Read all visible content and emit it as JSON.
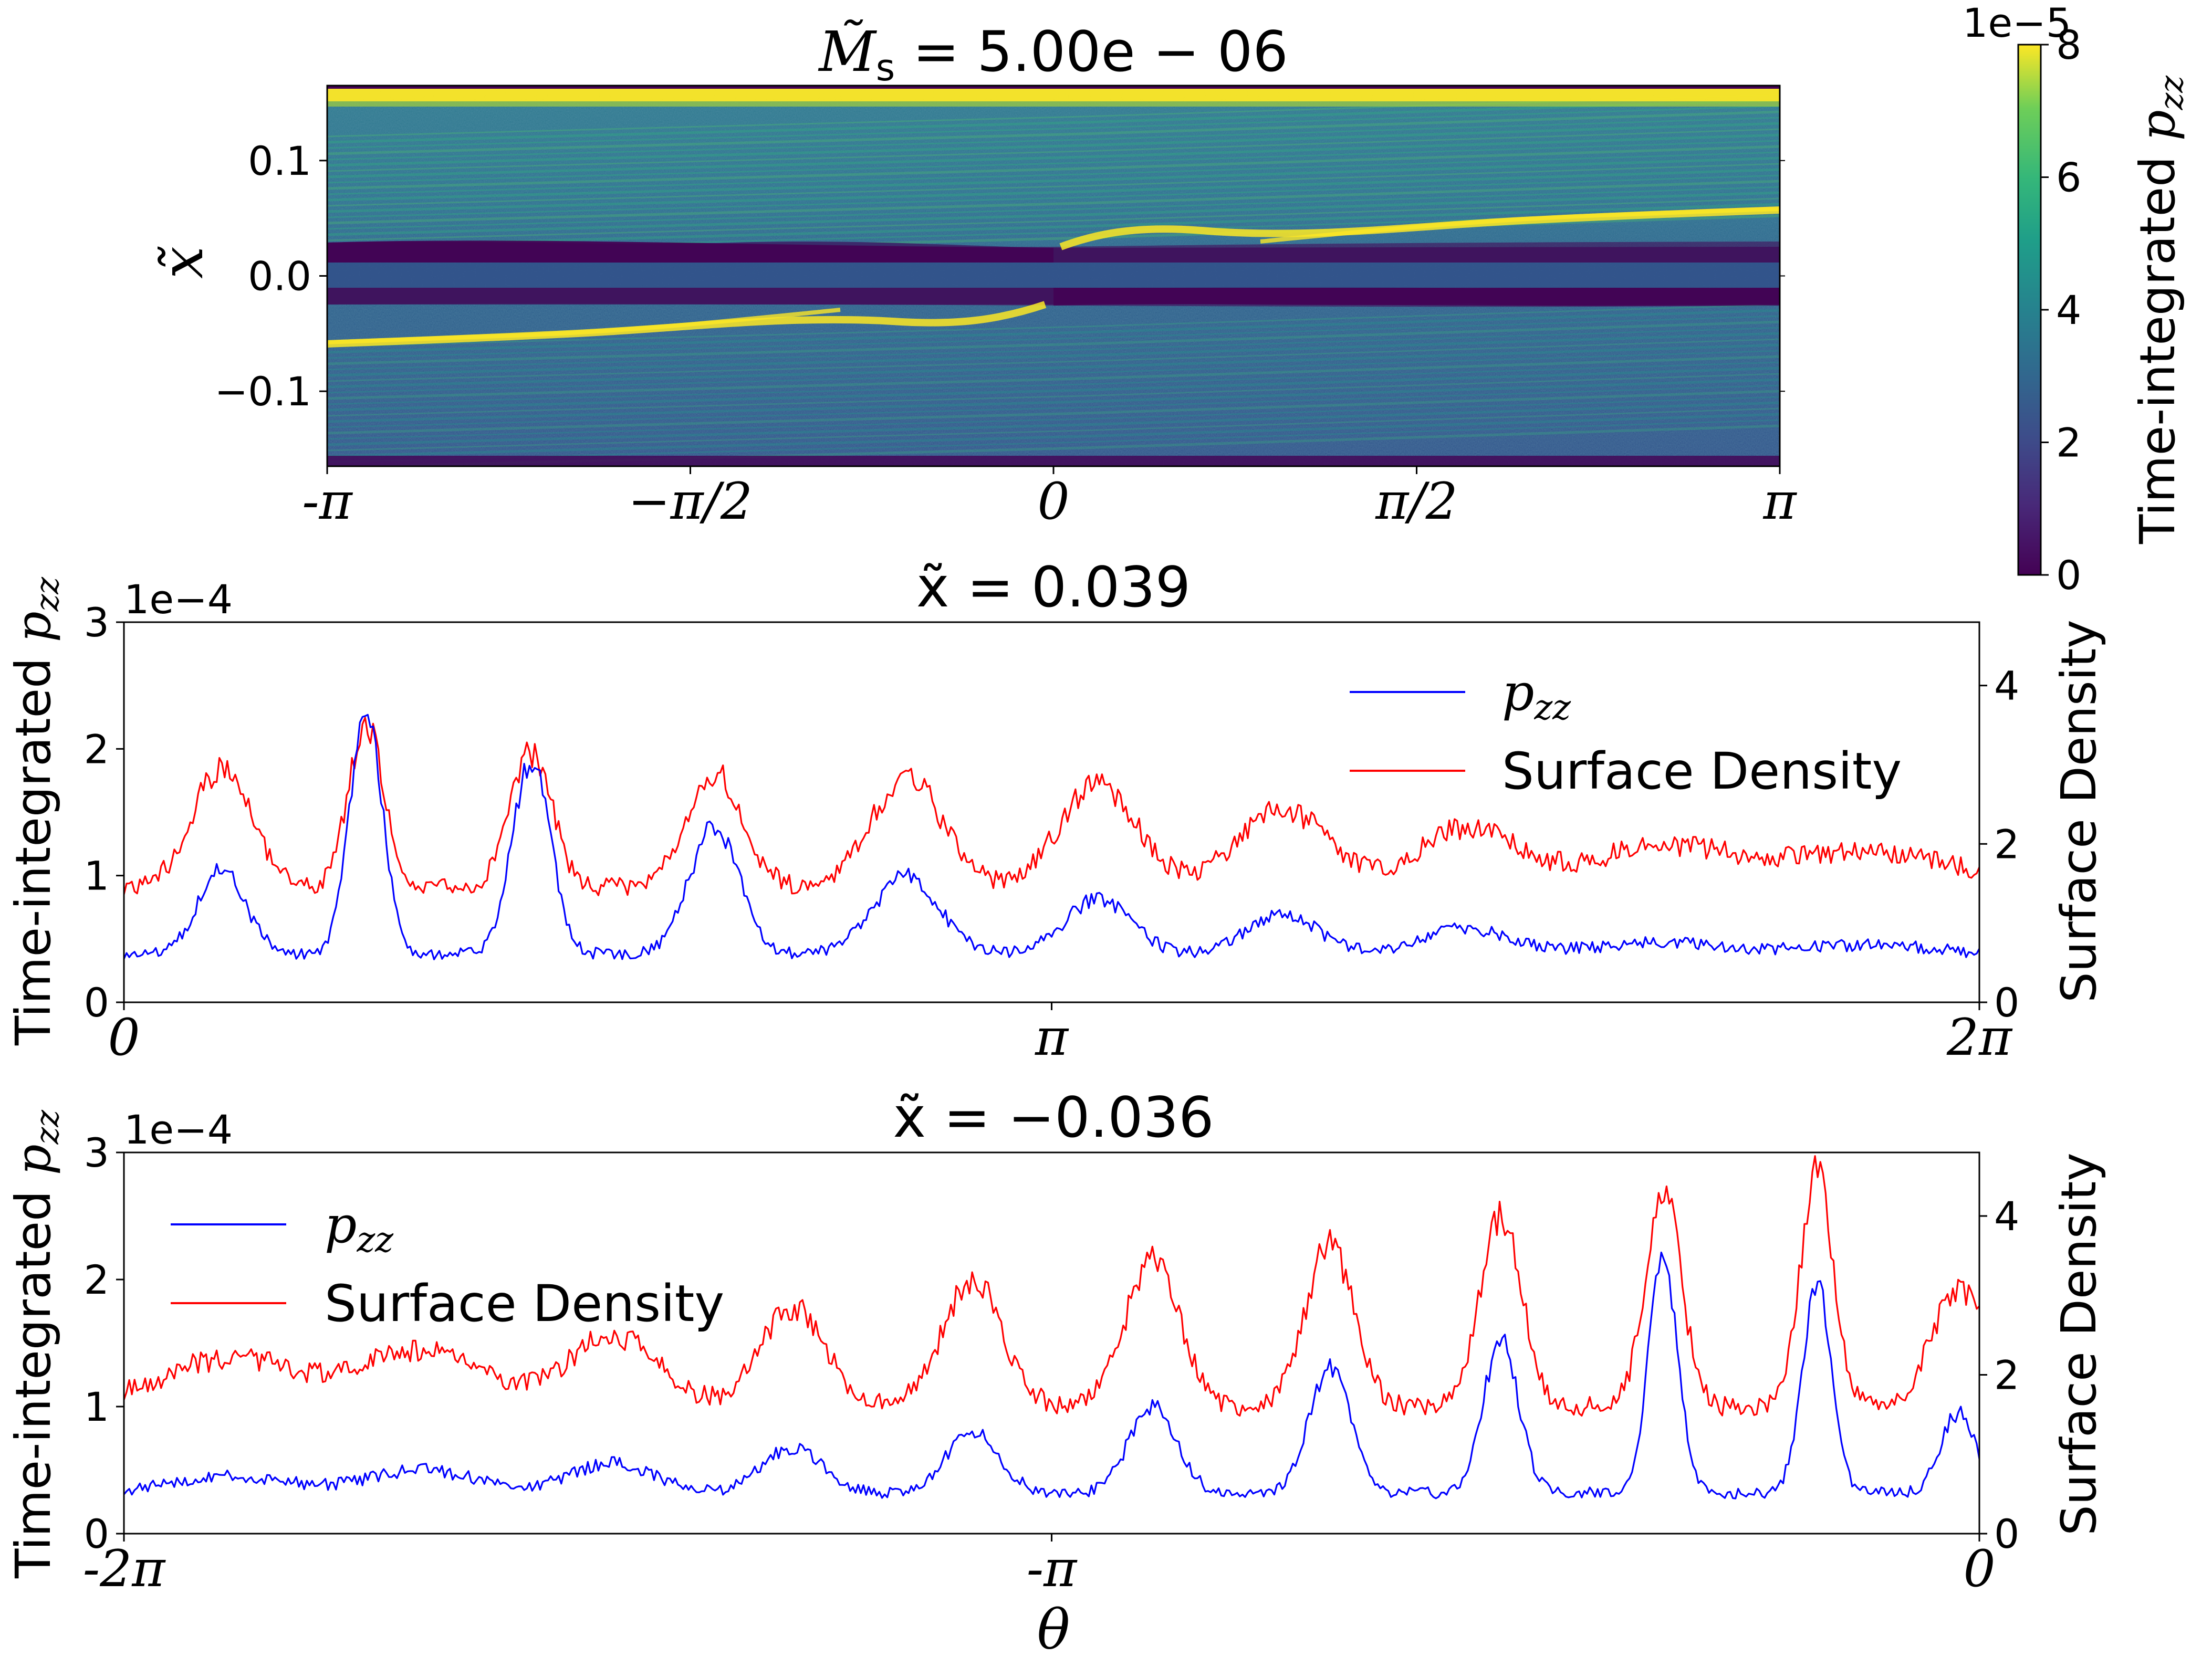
{
  "colors": {
    "pzz_line": "#0000ff",
    "surface_density_line": "#ff0000",
    "colormap": "viridis",
    "background": "#ffffff"
  },
  "chart_data": [
    {
      "type": "heatmap",
      "title": "M̃s = 5.00e − 06",
      "title_parts": {
        "base": "M̃",
        "sub": "s",
        "rest": " = 5.00e − 06"
      },
      "ylabel": "x̃",
      "x_ticks": [
        "-π",
        "−π/2",
        "0",
        "π/2",
        "π"
      ],
      "x_tick_values": [
        -3.14159,
        -1.5708,
        0,
        1.5708,
        3.14159
      ],
      "y_ticks": [
        "0.1",
        "0.0",
        "−0.1"
      ],
      "y_tick_values": [
        0.1,
        0.0,
        -0.1
      ],
      "xlim": [
        -3.14159,
        3.14159
      ],
      "ylim": [
        -0.165,
        0.165
      ],
      "colorbar": {
        "label": "Time-integrated p_zz",
        "label_parts": {
          "base": "Time-integrated ",
          "var": "p",
          "sub": "zz"
        },
        "multiplier": "1e−5",
        "ticks": [
          "0",
          "2",
          "4",
          "6",
          "8"
        ],
        "tick_values": [
          0,
          2,
          4,
          6,
          8
        ],
        "range": [
          0,
          8
        ]
      }
    },
    {
      "type": "line",
      "title": "x̃ = 0.039",
      "ylabel_left": "Time-integrated p_zz",
      "ylabel_left_parts": {
        "base": "Time-integrated ",
        "var": "p",
        "sub": "zz"
      },
      "ylabel_right": "Surface Density",
      "left_multiplier": "1e−4",
      "xlim": [
        0,
        6.28319
      ],
      "ylim_left": [
        0,
        3
      ],
      "ylim_right": [
        0,
        4.8
      ],
      "x_ticks": [
        "0",
        "π",
        "2π"
      ],
      "x_tick_values": [
        0,
        3.14159,
        6.28319
      ],
      "y_ticks_left": [
        "0",
        "1",
        "2",
        "3"
      ],
      "y_ticks_right": [
        "0",
        "2",
        "4"
      ],
      "legend_position": "upper-right",
      "peak_x": [
        0.33,
        0.82,
        1.38,
        2.0,
        2.65,
        3.3,
        3.92,
        4.55,
        5.2,
        5.9
      ],
      "series": [
        {
          "name": "p_zz",
          "name_parts": {
            "var": "p",
            "sub": "zz"
          },
          "axis": "left",
          "color": "#0000ff",
          "baseline": 0.38,
          "peak_values": [
            1.05,
            2.32,
            1.9,
            1.38,
            1.0,
            0.82,
            0.7,
            0.58,
            0.48,
            0.45
          ],
          "peak_widths": [
            0.08,
            0.055,
            0.065,
            0.085,
            0.11,
            0.11,
            0.12,
            0.15,
            0.2,
            0.22
          ]
        },
        {
          "name": "Surface Density",
          "axis": "right",
          "color": "#ff0000",
          "baseline": 1.45,
          "peak_values": [
            2.95,
            3.5,
            3.15,
            2.9,
            2.85,
            2.75,
            2.45,
            2.2,
            1.95,
            1.9
          ],
          "peak_widths": [
            0.1,
            0.06,
            0.07,
            0.095,
            0.12,
            0.13,
            0.15,
            0.17,
            0.24,
            0.3
          ]
        }
      ]
    },
    {
      "type": "line",
      "title": "x̃ = −0.036",
      "xlabel": "θ",
      "ylabel_left": "Time-integrated p_zz",
      "ylabel_left_parts": {
        "base": "Time-integrated ",
        "var": "p",
        "sub": "zz"
      },
      "ylabel_right": "Surface Density",
      "left_multiplier": "1e−4",
      "xlim": [
        -6.28319,
        0
      ],
      "ylim_left": [
        0,
        3
      ],
      "ylim_right": [
        0,
        4.8
      ],
      "x_ticks": [
        "-2π",
        "-π",
        "0"
      ],
      "x_tick_values": [
        -6.28319,
        -3.14159,
        0
      ],
      "y_ticks_left": [
        "0",
        "1",
        "2",
        "3"
      ],
      "y_ticks_right": [
        "0",
        "2",
        "4"
      ],
      "legend_position": "upper-left",
      "peak_x": [
        -5.92,
        -5.27,
        -4.63,
        -4.02,
        -3.41,
        -2.8,
        -2.2,
        -1.62,
        -1.07,
        -0.55,
        -0.07
      ],
      "series": [
        {
          "name": "p_zz",
          "name_parts": {
            "var": "p",
            "sub": "zz"
          },
          "axis": "left",
          "color": "#0000ff",
          "baseline": 0.32,
          "peak_values": [
            0.45,
            0.5,
            0.55,
            0.68,
            0.8,
            1.0,
            1.3,
            1.52,
            2.15,
            1.95,
            0.95
          ],
          "peak_widths": [
            0.2,
            0.18,
            0.14,
            0.1,
            0.09,
            0.08,
            0.07,
            0.06,
            0.05,
            0.05,
            0.06
          ]
        },
        {
          "name": "Surface Density",
          "axis": "right",
          "color": "#ff0000",
          "baseline": 1.6,
          "peak_values": [
            2.2,
            2.3,
            2.5,
            2.85,
            3.2,
            3.45,
            3.65,
            4.0,
            4.35,
            4.6,
            3.1
          ],
          "peak_widths": [
            0.24,
            0.2,
            0.15,
            0.11,
            0.1,
            0.09,
            0.08,
            0.07,
            0.06,
            0.055,
            0.09
          ]
        }
      ]
    }
  ]
}
